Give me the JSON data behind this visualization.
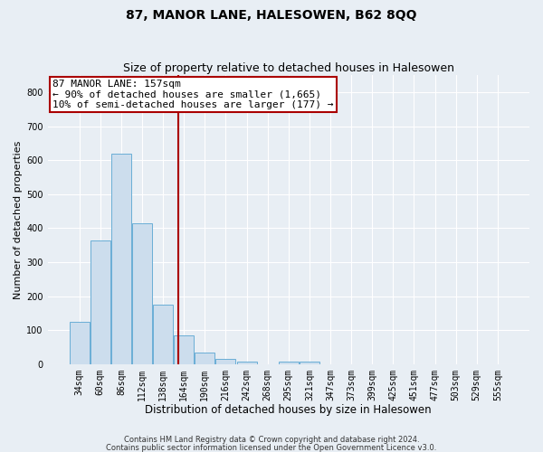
{
  "title": "87, MANOR LANE, HALESOWEN, B62 8QQ",
  "subtitle": "Size of property relative to detached houses in Halesowen",
  "xlabel": "Distribution of detached houses by size in Halesowen",
  "ylabel": "Number of detached properties",
  "categories": [
    "34sqm",
    "60sqm",
    "86sqm",
    "112sqm",
    "138sqm",
    "164sqm",
    "190sqm",
    "216sqm",
    "242sqm",
    "268sqm",
    "295sqm",
    "321sqm",
    "347sqm",
    "373sqm",
    "399sqm",
    "425sqm",
    "451sqm",
    "477sqm",
    "503sqm",
    "529sqm",
    "555sqm"
  ],
  "values": [
    125,
    365,
    620,
    415,
    175,
    85,
    35,
    15,
    8,
    0,
    8,
    8,
    0,
    0,
    0,
    0,
    0,
    0,
    0,
    0,
    0
  ],
  "bar_color": "#ccdded",
  "bar_edge_color": "#6aaed6",
  "vline_color": "#aa0000",
  "vline_pos": 4.73,
  "annotation_line1": "87 MANOR LANE: 157sqm",
  "annotation_line2": "← 90% of detached houses are smaller (1,665)",
  "annotation_line3": "10% of semi-detached houses are larger (177) →",
  "annotation_box_facecolor": "#ffffff",
  "annotation_box_edgecolor": "#aa0000",
  "ylim": [
    0,
    850
  ],
  "yticks": [
    0,
    100,
    200,
    300,
    400,
    500,
    600,
    700,
    800
  ],
  "footnote1": "Contains HM Land Registry data © Crown copyright and database right 2024.",
  "footnote2": "Contains public sector information licensed under the Open Government Licence v3.0.",
  "fig_facecolor": "#e8eef4",
  "ax_facecolor": "#e8eef4",
  "grid_color": "#ffffff",
  "title_fontsize": 10,
  "subtitle_fontsize": 9,
  "xlabel_fontsize": 8.5,
  "ylabel_fontsize": 8,
  "tick_fontsize": 7,
  "annot_fontsize": 8,
  "footnote_fontsize": 6
}
